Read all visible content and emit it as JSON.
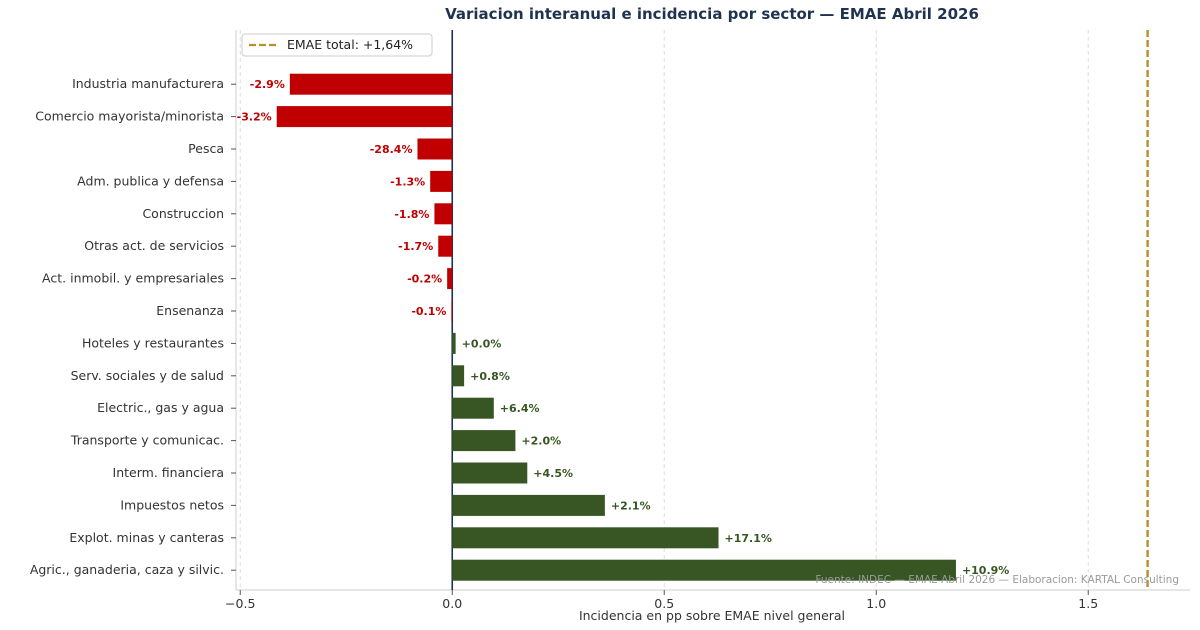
{
  "chart_data": {
    "type": "bar",
    "orientation": "horizontal",
    "title": "Variacion interanual e incidencia por sector — EMAE Abril 2026",
    "xlabel": "Incidencia en pp sobre EMAE nivel general",
    "ylabel": "",
    "xlim": [
      -0.51,
      1.74
    ],
    "xticks": [
      -0.5,
      0.0,
      0.5,
      1.0,
      1.5
    ],
    "xtick_labels": [
      "−0.5",
      "0.0",
      "0.5",
      "1.0",
      "1.5"
    ],
    "grid": "vertical dashed",
    "categories": [
      "Industria manufacturera",
      "Comercio mayorista/minorista",
      "Pesca",
      "Adm. publica y defensa",
      "Construccion",
      "Otras act. de servicios",
      "Act. inmobil. y empresariales",
      "Ensenanza",
      "Hoteles y restaurantes",
      "Serv. sociales y de salud",
      "Electric., gas y agua",
      "Transporte y comunicac.",
      "Interm. financiera",
      "Impuestos netos",
      "Explot. minas y canteras",
      "Agric., ganaderia, caza y silvic."
    ],
    "values": [
      -0.383,
      -0.414,
      -0.082,
      -0.052,
      -0.042,
      -0.033,
      -0.012,
      -0.002,
      0.008,
      0.028,
      0.098,
      0.149,
      0.177,
      0.36,
      0.628,
      1.188
    ],
    "data_labels": [
      "-2.9%",
      "-3.2%",
      "-28.4%",
      "-1.3%",
      "-1.8%",
      "-1.7%",
      "-0.2%",
      "-0.1%",
      "+0.0%",
      "+0.8%",
      "+6.4%",
      "+2.0%",
      "+4.5%",
      "+2.1%",
      "+17.1%",
      "+10.9%"
    ],
    "reference_line": {
      "value": 1.64,
      "label": "EMAE total: +1,64%",
      "style": "dashed",
      "color": "#b8902a"
    },
    "legend": "top-left",
    "colors": {
      "negative": "#c00000",
      "positive": "#375623",
      "zero_line": "#1f3350",
      "reference": "#b8902a",
      "grid": "#dddddd"
    },
    "source": "Fuente: INDEC — EMAE Abril 2026 — Elaboracion: KARTAL Consulting"
  }
}
